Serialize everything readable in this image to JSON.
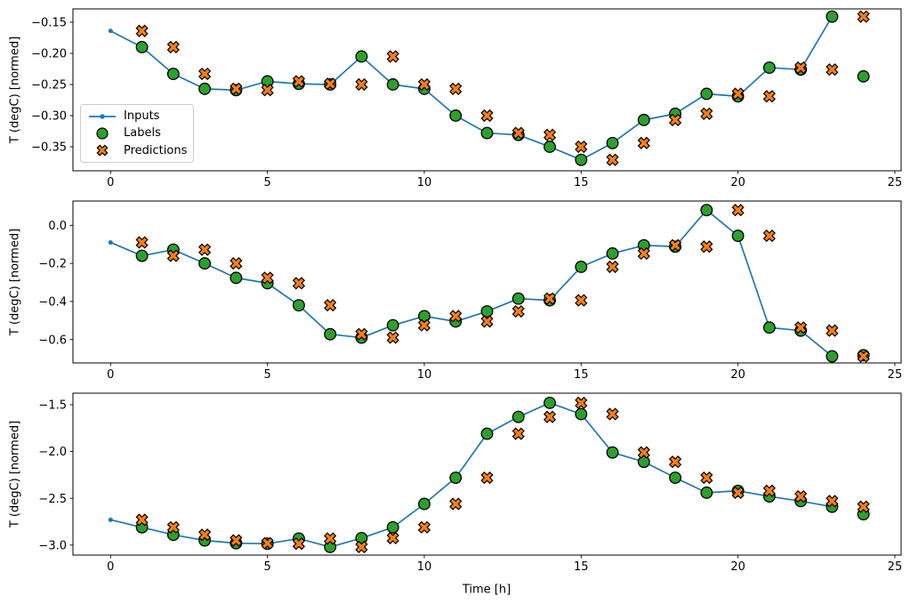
{
  "figure": {
    "background": "#ffffff",
    "ylabel": "T (degC) [normed]",
    "xlabel": "Time [h]",
    "axis_color": "#000000"
  },
  "legend": {
    "items": [
      {
        "label": "Inputs",
        "marker": "line-dot",
        "color": "#1f77b4",
        "edge": "#000000"
      },
      {
        "label": "Labels",
        "marker": "circle",
        "color": "#2ca02c",
        "edge": "#000000"
      },
      {
        "label": "Predictions",
        "marker": "x-cross",
        "color": "#ff7f0e",
        "edge": "#000000"
      }
    ]
  },
  "chart_data": [
    {
      "type": "line",
      "title": "",
      "ylabel": "T (degC) [normed]",
      "xlabel": "",
      "xlim": [
        -1.2,
        25.2
      ],
      "ylim": [
        -0.3886,
        -0.1286
      ],
      "xticks": [
        0,
        5,
        10,
        15,
        20,
        25
      ],
      "xtick_labels": [
        "0",
        "5",
        "10",
        "15",
        "20",
        "25"
      ],
      "yticks": [
        -0.15,
        -0.2,
        -0.25,
        -0.3,
        -0.35
      ],
      "ytick_labels": [
        "−0.15",
        "−0.20",
        "−0.25",
        "−0.30",
        "−0.35"
      ],
      "grid": false,
      "legend_position": "center left",
      "series": [
        {
          "name": "Inputs",
          "style": "line-dot",
          "color": "#1f77b4",
          "x": [
            0,
            1,
            2,
            3,
            4,
            5,
            6,
            7,
            8,
            9,
            10,
            11,
            12,
            13,
            14,
            15,
            16,
            17,
            18,
            19,
            20,
            21,
            22,
            23
          ],
          "y": [
            -0.164,
            -0.19,
            -0.233,
            -0.257,
            -0.259,
            -0.245,
            -0.249,
            -0.25,
            -0.205,
            -0.25,
            -0.257,
            -0.3,
            -0.328,
            -0.331,
            -0.35,
            -0.371,
            -0.344,
            -0.307,
            -0.297,
            -0.265,
            -0.269,
            -0.223,
            -0.226,
            -0.141
          ]
        },
        {
          "name": "Labels",
          "style": "scatter-circle",
          "color": "#2ca02c",
          "edge": "#000000",
          "x": [
            1,
            2,
            3,
            4,
            5,
            6,
            7,
            8,
            9,
            10,
            11,
            12,
            13,
            14,
            15,
            16,
            17,
            18,
            19,
            20,
            21,
            22,
            23,
            24
          ],
          "y": [
            -0.19,
            -0.233,
            -0.257,
            -0.259,
            -0.245,
            -0.249,
            -0.25,
            -0.205,
            -0.25,
            -0.257,
            -0.3,
            -0.328,
            -0.331,
            -0.35,
            -0.371,
            -0.344,
            -0.307,
            -0.297,
            -0.265,
            -0.269,
            -0.223,
            -0.226,
            -0.141,
            -0.237
          ]
        },
        {
          "name": "Predictions",
          "style": "scatter-x",
          "color": "#ff7f0e",
          "edge": "#000000",
          "x": [
            1,
            2,
            3,
            4,
            5,
            6,
            7,
            8,
            9,
            10,
            11,
            12,
            13,
            14,
            15,
            16,
            17,
            18,
            19,
            20,
            21,
            22,
            23,
            24
          ],
          "y": [
            -0.164,
            -0.19,
            -0.233,
            -0.257,
            -0.259,
            -0.245,
            -0.249,
            -0.25,
            -0.205,
            -0.25,
            -0.257,
            -0.3,
            -0.328,
            -0.331,
            -0.35,
            -0.371,
            -0.344,
            -0.307,
            -0.297,
            -0.265,
            -0.269,
            -0.223,
            -0.226,
            -0.141
          ]
        }
      ]
    },
    {
      "type": "line",
      "title": "",
      "ylabel": "T (degC) [normed]",
      "xlabel": "",
      "xlim": [
        -1.2,
        25.2
      ],
      "ylim": [
        -0.7228,
        0.1276
      ],
      "xticks": [
        0,
        5,
        10,
        15,
        20,
        25
      ],
      "xtick_labels": [
        "0",
        "5",
        "10",
        "15",
        "20",
        "25"
      ],
      "yticks": [
        0.0,
        -0.2,
        -0.4,
        -0.6
      ],
      "ytick_labels": [
        "0.0",
        "−0.2",
        "−0.4",
        "−0.6"
      ],
      "grid": false,
      "legend_position": "none",
      "series": [
        {
          "name": "Inputs",
          "style": "line-dot",
          "color": "#1f77b4",
          "x": [
            0,
            1,
            2,
            3,
            4,
            5,
            6,
            7,
            8,
            9,
            10,
            11,
            12,
            13,
            14,
            15,
            16,
            17,
            18,
            19,
            20,
            21,
            22,
            23
          ],
          "y": [
            -0.09,
            -0.16,
            -0.128,
            -0.2,
            -0.276,
            -0.304,
            -0.42,
            -0.572,
            -0.59,
            -0.525,
            -0.477,
            -0.505,
            -0.452,
            -0.385,
            -0.394,
            -0.218,
            -0.148,
            -0.105,
            -0.112,
            0.08,
            -0.055,
            -0.537,
            -0.553,
            -0.688
          ]
        },
        {
          "name": "Labels",
          "style": "scatter-circle",
          "color": "#2ca02c",
          "edge": "#000000",
          "x": [
            1,
            2,
            3,
            4,
            5,
            6,
            7,
            8,
            9,
            10,
            11,
            12,
            13,
            14,
            15,
            16,
            17,
            18,
            19,
            20,
            21,
            22,
            23,
            24
          ],
          "y": [
            -0.16,
            -0.128,
            -0.2,
            -0.276,
            -0.304,
            -0.42,
            -0.572,
            -0.59,
            -0.525,
            -0.477,
            -0.505,
            -0.452,
            -0.385,
            -0.394,
            -0.218,
            -0.148,
            -0.105,
            -0.112,
            0.08,
            -0.055,
            -0.537,
            -0.553,
            -0.688,
            -0.682
          ]
        },
        {
          "name": "Predictions",
          "style": "scatter-x",
          "color": "#ff7f0e",
          "edge": "#000000",
          "x": [
            1,
            2,
            3,
            4,
            5,
            6,
            7,
            8,
            9,
            10,
            11,
            12,
            13,
            14,
            15,
            16,
            17,
            18,
            19,
            20,
            21,
            22,
            23,
            24
          ],
          "y": [
            -0.09,
            -0.16,
            -0.128,
            -0.2,
            -0.276,
            -0.304,
            -0.42,
            -0.572,
            -0.59,
            -0.525,
            -0.477,
            -0.505,
            -0.452,
            -0.385,
            -0.394,
            -0.218,
            -0.148,
            -0.105,
            -0.112,
            0.08,
            -0.055,
            -0.537,
            -0.553,
            -0.688
          ]
        }
      ]
    },
    {
      "type": "line",
      "title": "",
      "ylabel": "T (degC) [normed]",
      "xlabel": "Time [h]",
      "xlim": [
        -1.2,
        25.2
      ],
      "ylim": [
        -3.1066,
        -1.3764
      ],
      "xticks": [
        0,
        5,
        10,
        15,
        20,
        25
      ],
      "xtick_labels": [
        "0",
        "5",
        "10",
        "15",
        "20",
        "25"
      ],
      "yticks": [
        -1.5,
        -2.0,
        -2.5,
        -3.0
      ],
      "ytick_labels": [
        "−1.5",
        "−2.0",
        "−2.5",
        "−3.0"
      ],
      "grid": false,
      "legend_position": "none",
      "series": [
        {
          "name": "Inputs",
          "style": "line-dot",
          "color": "#1f77b4",
          "x": [
            0,
            1,
            2,
            3,
            4,
            5,
            6,
            7,
            8,
            9,
            10,
            11,
            12,
            13,
            14,
            15,
            16,
            17,
            18,
            19,
            20,
            21,
            22,
            23
          ],
          "y": [
            -2.73,
            -2.81,
            -2.89,
            -2.95,
            -2.98,
            -2.985,
            -2.93,
            -3.02,
            -2.925,
            -2.81,
            -2.56,
            -2.28,
            -1.81,
            -1.63,
            -1.48,
            -1.6,
            -2.01,
            -2.11,
            -2.28,
            -2.44,
            -2.42,
            -2.48,
            -2.53,
            -2.59
          ]
        },
        {
          "name": "Labels",
          "style": "scatter-circle",
          "color": "#2ca02c",
          "edge": "#000000",
          "x": [
            1,
            2,
            3,
            4,
            5,
            6,
            7,
            8,
            9,
            10,
            11,
            12,
            13,
            14,
            15,
            16,
            17,
            18,
            19,
            20,
            21,
            22,
            23,
            24
          ],
          "y": [
            -2.81,
            -2.89,
            -2.95,
            -2.98,
            -2.985,
            -2.93,
            -3.02,
            -2.925,
            -2.81,
            -2.56,
            -2.28,
            -1.81,
            -1.63,
            -1.48,
            -1.6,
            -2.01,
            -2.11,
            -2.28,
            -2.44,
            -2.42,
            -2.48,
            -2.53,
            -2.59,
            -2.67
          ]
        },
        {
          "name": "Predictions",
          "style": "scatter-x",
          "color": "#ff7f0e",
          "edge": "#000000",
          "x": [
            1,
            2,
            3,
            4,
            5,
            6,
            7,
            8,
            9,
            10,
            11,
            12,
            13,
            14,
            15,
            16,
            17,
            18,
            19,
            20,
            21,
            22,
            23,
            24
          ],
          "y": [
            -2.73,
            -2.81,
            -2.89,
            -2.95,
            -2.98,
            -2.985,
            -2.93,
            -3.02,
            -2.925,
            -2.81,
            -2.56,
            -2.28,
            -1.81,
            -1.63,
            -1.48,
            -1.6,
            -2.01,
            -2.11,
            -2.28,
            -2.44,
            -2.42,
            -2.48,
            -2.53,
            -2.59
          ]
        }
      ]
    }
  ]
}
